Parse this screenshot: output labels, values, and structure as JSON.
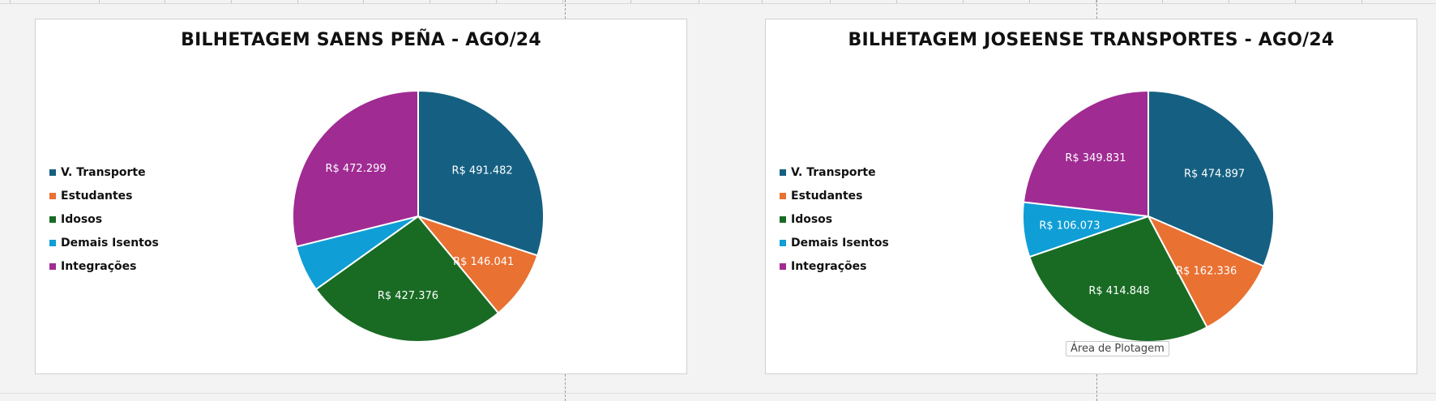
{
  "chart_data": [
    {
      "type": "pie",
      "title": "BILHETAGEM SAENS PEÑA - AGO/24",
      "categories": [
        "V. Transporte",
        "Estudantes",
        "Idosos",
        "Demais Isentos",
        "Integrações"
      ],
      "values": [
        491482,
        146041,
        427376,
        98000,
        472299
      ],
      "data_labels": [
        "R$ 491.482",
        "R$ 146.041",
        "R$ 427.376",
        "",
        "R$ 472.299"
      ],
      "colors": [
        "#156082",
        "#e97132",
        "#196b24",
        "#0f9ed5",
        "#a02b93"
      ],
      "legend_position": "left"
    },
    {
      "type": "pie",
      "title": "BILHETAGEM JOSEENSE TRANSPORTES - AGO/24",
      "categories": [
        "V. Transporte",
        "Estudantes",
        "Idosos",
        "Demais Isentos",
        "Integrações"
      ],
      "values": [
        474897,
        162336,
        414848,
        106073,
        349831
      ],
      "data_labels": [
        "R$ 474.897",
        "R$ 162.336",
        "R$ 414.848",
        "R$ 106.073",
        "R$ 349.831"
      ],
      "colors": [
        "#156082",
        "#e97132",
        "#196b24",
        "#0f9ed5",
        "#a02b93"
      ],
      "legend_position": "left"
    }
  ],
  "tooltip": "Área de Plotagem"
}
